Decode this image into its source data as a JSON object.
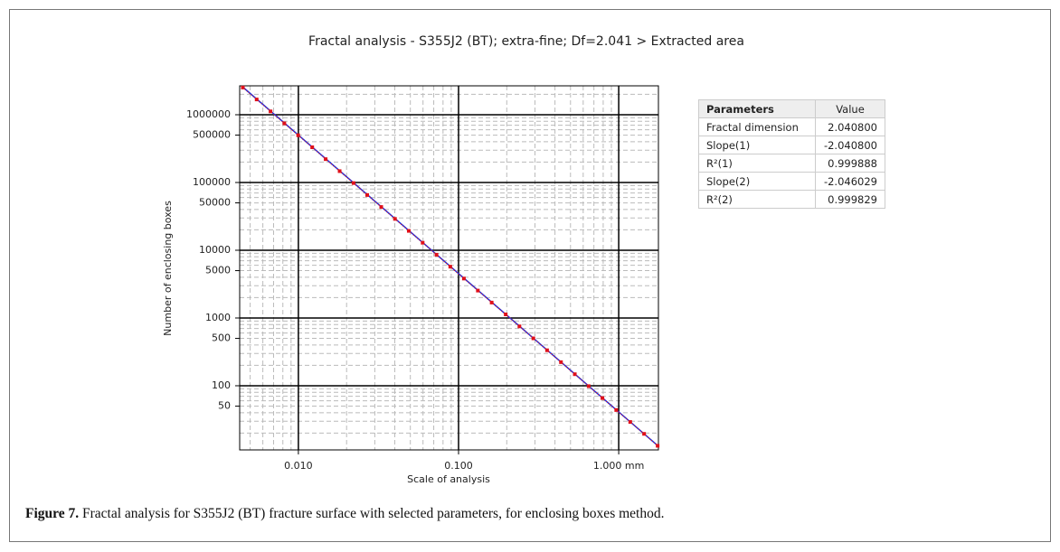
{
  "chart_data": {
    "type": "scatter",
    "title": "Fractal analysis - S355J2 (BT); extra-fine; Df=2.041 > Extracted area",
    "x_label": "Scale of analysis",
    "y_label": "Number of enclosing boxes",
    "xlog": true,
    "ylog": true,
    "grid": true,
    "minor_grid": true,
    "xlim": [
      0.0043,
      1.77
    ],
    "ylim": [
      11.3,
      2670000
    ],
    "xticks": [
      {
        "value": 0.01,
        "label": "0.010"
      },
      {
        "value": 0.1,
        "label": "0.100"
      },
      {
        "value": 1,
        "label": "1.000 mm"
      }
    ],
    "yticks": [
      1000000,
      500000,
      100000,
      50000,
      10000,
      5000,
      1000,
      500,
      100,
      50
    ],
    "series": [
      {
        "color": "#e0101a",
        "x": [
          0.0045,
          0.00549,
          0.0067,
          0.00817,
          0.00997,
          0.0122,
          0.0148,
          0.0181,
          0.0221,
          0.0269,
          0.0329,
          0.0401,
          0.0489,
          0.0597,
          0.0728,
          0.0888,
          0.108,
          0.132,
          0.161,
          0.197,
          0.24,
          0.293,
          0.357,
          0.436,
          0.532,
          0.649,
          0.791,
          0.965,
          1.18,
          1.44,
          1.75
        ],
        "values": [
          2520000,
          1680000,
          1120000,
          746000,
          497000,
          331000,
          221000,
          147000,
          98000,
          65300,
          43500,
          29000,
          19300,
          12900,
          8590,
          5720,
          3820,
          2540,
          1690,
          1130,
          752,
          501,
          334,
          223,
          148,
          98.7,
          65.8,
          43.8,
          29.2,
          19.5,
          13.0
        ]
      }
    ],
    "fit_line": {
      "color": "#1f35e0",
      "x": [
        0.0045,
        1.77
      ],
      "values": [
        2560000,
        12.8
      ]
    }
  },
  "table": {
    "header": [
      "Parameters",
      "Value"
    ],
    "rows": [
      [
        "Fractal dimension",
        "2.040800"
      ],
      [
        "Slope(1)",
        "-2.040800"
      ],
      [
        "R²(1)",
        "0.999888"
      ],
      [
        "Slope(2)",
        "-2.046029"
      ],
      [
        "R²(2)",
        "0.999829"
      ]
    ]
  },
  "caption": {
    "label": "Figure 7.",
    "text": "Fractal analysis for S355J2 (BT) fracture surface with selected parameters, for enclosing boxes method."
  }
}
